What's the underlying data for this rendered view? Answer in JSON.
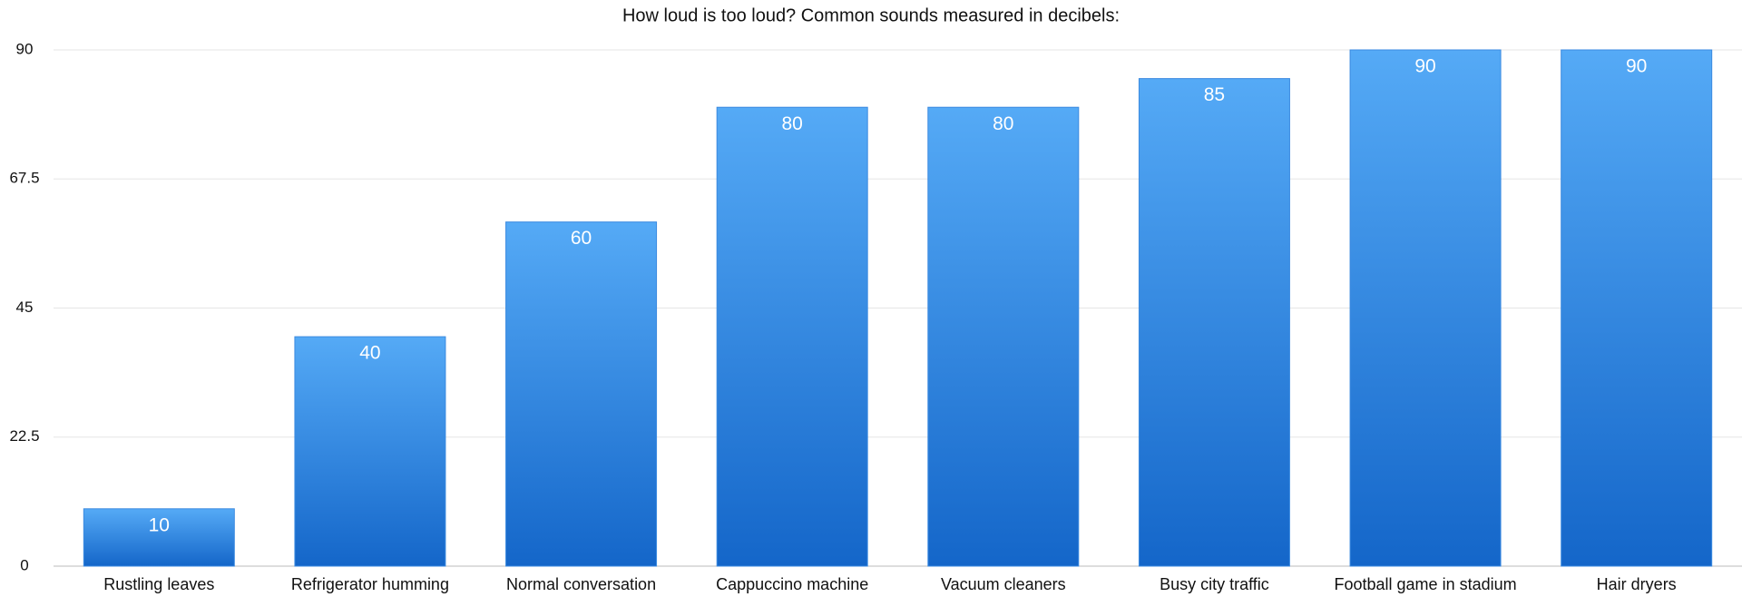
{
  "chart_data": {
    "type": "bar",
    "title": "How loud is too loud? Common sounds measured in decibels:",
    "categories": [
      "Rustling leaves",
      "Refrigerator humming",
      "Normal conversation",
      "Cappuccino machine",
      "Vacuum cleaners",
      "Busy city traffic",
      "Football game in stadium",
      "Hair dryers"
    ],
    "values": [
      10,
      40,
      60,
      80,
      80,
      85,
      90,
      90
    ],
    "color": "#3a8fe8",
    "ylim": [
      0,
      90
    ],
    "yticks": [
      0,
      22.5,
      45,
      67.5,
      90
    ],
    "grid": true
  }
}
